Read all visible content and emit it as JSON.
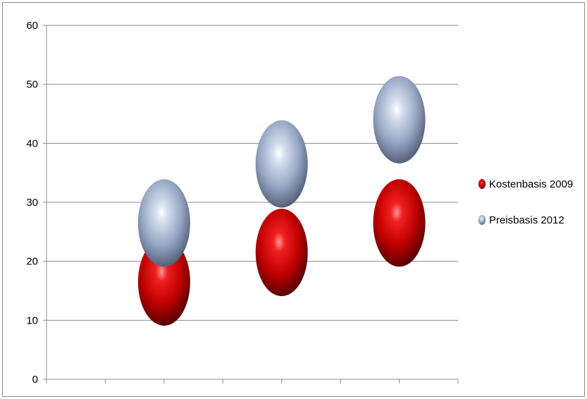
{
  "chart_data": {
    "type": "scatter",
    "title": "",
    "xlabel": "",
    "ylabel": "",
    "ylim": [
      0,
      60
    ],
    "yticks": [
      0,
      10,
      20,
      30,
      40,
      50,
      60
    ],
    "xlim": [
      0,
      7
    ],
    "grid": true,
    "legend_position": "right",
    "series": [
      {
        "name": "Kostenbasis 2009",
        "color": "#c00000",
        "marker": "sphere",
        "x": [
          2,
          4,
          6
        ],
        "y": [
          16.5,
          21.5,
          26.5
        ]
      },
      {
        "name": "Preisbasis 2012",
        "color": "#9fb2cf",
        "marker": "sphere",
        "x": [
          2,
          4,
          6
        ],
        "y": [
          26.5,
          36.5,
          44
        ]
      }
    ]
  }
}
